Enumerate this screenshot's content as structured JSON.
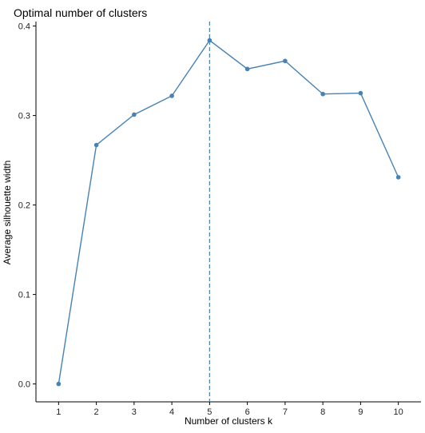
{
  "chart_data": {
    "type": "line",
    "title": "Optimal number of clusters",
    "xlabel": "Number of clusters k",
    "ylabel": "Average silhouette width",
    "x": [
      1,
      2,
      3,
      4,
      5,
      6,
      7,
      8,
      9,
      10
    ],
    "series": [
      {
        "values": [
          0.0,
          0.267,
          0.301,
          0.322,
          0.384,
          0.352,
          0.361,
          0.324,
          0.325,
          0.231
        ]
      }
    ],
    "xlim": [
      0.4,
      10.6
    ],
    "ylim": [
      -0.02,
      0.405
    ],
    "yticks": [
      0.0,
      0.1,
      0.2,
      0.3,
      0.4
    ],
    "ytick_labels": [
      "0.0",
      "0.1",
      "0.2",
      "0.3",
      "0.4"
    ],
    "xtick_labels": [
      "1",
      "2",
      "3",
      "4",
      "5",
      "6",
      "7",
      "8",
      "9",
      "10"
    ],
    "reference_line": {
      "axis": "x",
      "value": 5,
      "style": "dashed"
    },
    "grid": false,
    "legend": "none",
    "colors": {
      "series": "#4682B4",
      "axis": "#000000",
      "reference": "#4682B4"
    }
  }
}
